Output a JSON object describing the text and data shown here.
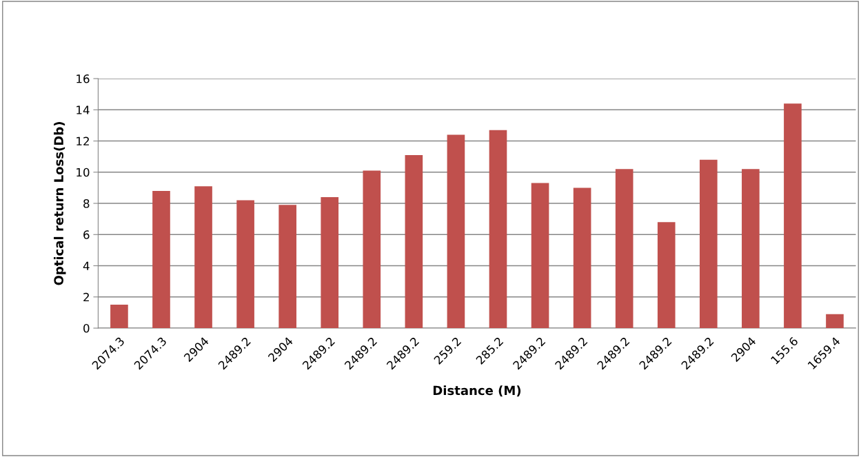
{
  "chart_data": {
    "type": "bar",
    "xlabel": "Distance (M)",
    "ylabel": "Optical return Loss(Db)",
    "categories": [
      "2074.3",
      "2074.3",
      "2904",
      "2489.2",
      "2904",
      "2489.2",
      "2489.2",
      "2489.2",
      "259.2",
      "285.2",
      "2489.2",
      "2489.2",
      "2489.2",
      "2489.2",
      "2489.2",
      "2904",
      "155.6",
      "1659.4"
    ],
    "values": [
      1.5,
      8.8,
      9.1,
      8.2,
      7.9,
      8.4,
      10.1,
      11.1,
      12.4,
      12.7,
      9.3,
      9.0,
      10.2,
      6.8,
      10.8,
      10.2,
      14.4,
      0.9
    ],
    "color": "#c0504d",
    "ylim": [
      0,
      16
    ],
    "yticks": [
      0,
      2,
      4,
      6,
      8,
      10,
      12,
      14,
      16
    ],
    "grid": "y",
    "legend": false
  }
}
